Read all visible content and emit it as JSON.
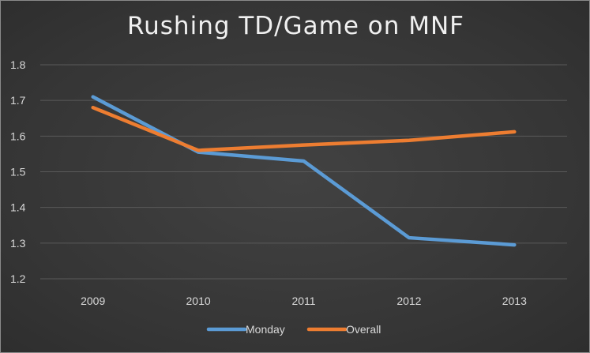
{
  "chart_data": {
    "type": "line",
    "title": "Rushing TD/Game on MNF",
    "xlabel": "",
    "ylabel": "",
    "categories": [
      "2009",
      "2010",
      "2011",
      "2012",
      "2013"
    ],
    "series": [
      {
        "name": "Monday",
        "color": "#5b9bd5",
        "values": [
          1.71,
          1.555,
          1.53,
          1.315,
          1.295
        ]
      },
      {
        "name": "Overall",
        "color": "#ed7d31",
        "values": [
          1.68,
          1.56,
          1.575,
          1.588,
          1.612
        ]
      }
    ],
    "ylim": [
      1.2,
      1.8
    ],
    "yticks": [
      "1.2",
      "1.3",
      "1.4",
      "1.5",
      "1.6",
      "1.7",
      "1.8"
    ],
    "grid": true,
    "legend": "bottom"
  }
}
